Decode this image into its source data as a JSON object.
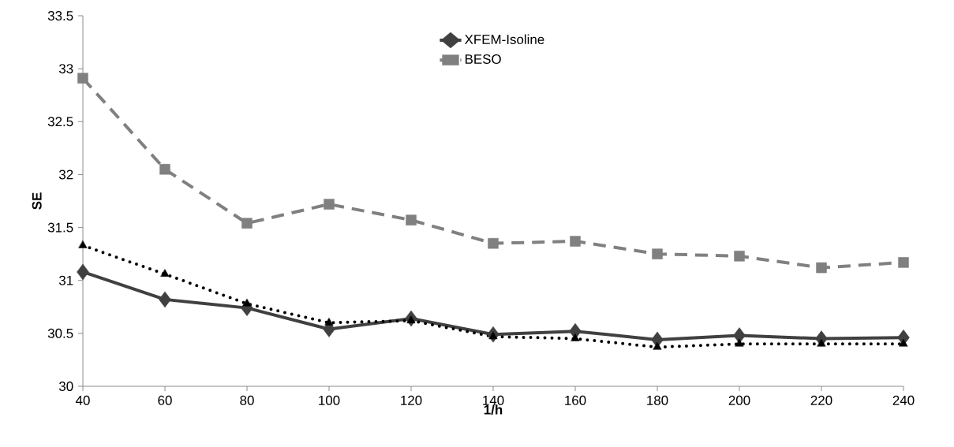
{
  "chart_data": {
    "type": "line",
    "xlabel": "1/h",
    "ylabel": "SE",
    "x": [
      40,
      60,
      80,
      100,
      120,
      140,
      160,
      180,
      200,
      220,
      240
    ],
    "xlim": [
      40,
      240
    ],
    "xticks": [
      40,
      60,
      80,
      100,
      120,
      140,
      160,
      180,
      200,
      220,
      240
    ],
    "ylim": [
      30,
      33.5
    ],
    "yticks": [
      30,
      30.5,
      31,
      31.5,
      32,
      32.5,
      33,
      33.5
    ],
    "legend": "top",
    "grid": false,
    "series": [
      {
        "name": "XFEM-Isoline",
        "color": "#404040",
        "marker": "diamond",
        "line_style": "solid",
        "values": [
          31.08,
          30.82,
          30.74,
          30.54,
          30.64,
          30.49,
          30.52,
          30.44,
          30.48,
          30.45,
          30.46
        ]
      },
      {
        "color": "#000000",
        "marker": "triangle",
        "line_style": "dotted",
        "values": [
          31.33,
          31.06,
          30.78,
          30.6,
          30.62,
          30.47,
          30.45,
          30.37,
          30.4,
          30.4,
          30.4
        ]
      },
      {
        "name": "BESO",
        "color": "#808080",
        "marker": "square",
        "line_style": "dashed",
        "values": [
          32.91,
          32.05,
          31.54,
          31.72,
          31.57,
          31.35,
          31.37,
          31.25,
          31.23,
          31.12,
          31.17
        ]
      }
    ]
  }
}
